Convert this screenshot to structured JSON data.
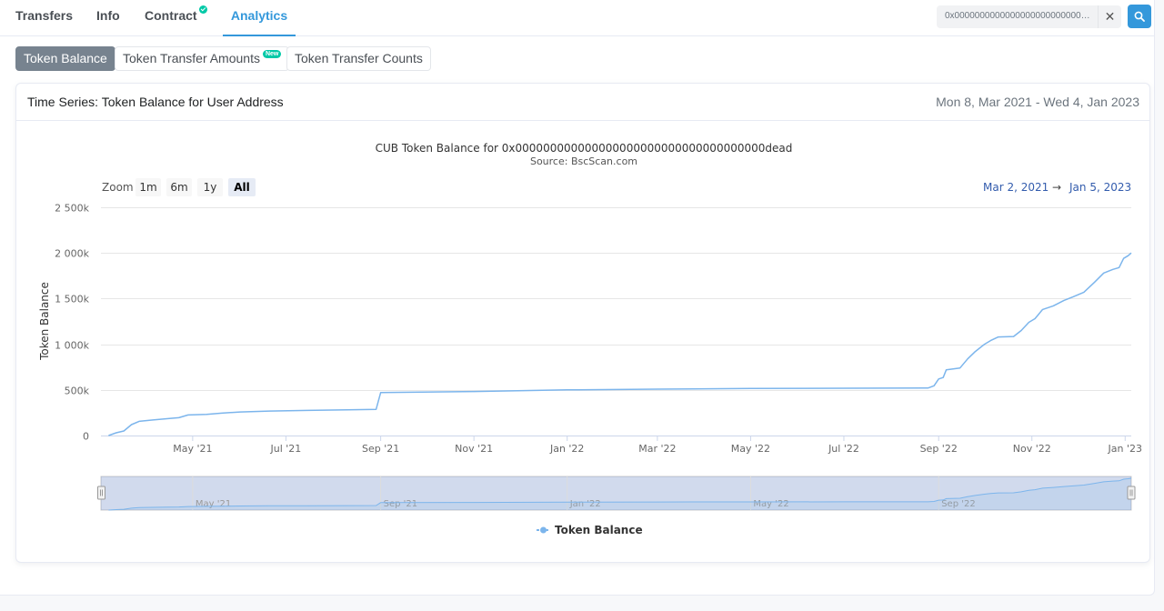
{
  "tabs": [
    {
      "label": "Transfers"
    },
    {
      "label": "Info"
    },
    {
      "label": "Contract"
    },
    {
      "label": "Analytics"
    }
  ],
  "search": {
    "value": "0x000000000000000000000000000000000000dead"
  },
  "subtabs": [
    {
      "label": "Token Balance"
    },
    {
      "label": "Token Transfer Amounts",
      "badge": "New"
    },
    {
      "label": "Token Transfer Counts"
    }
  ],
  "card": {
    "title": "Time Series: Token Balance for User Address",
    "range": "Mon 8, Mar 2021 - Wed 4, Jan 2023"
  },
  "chart": {
    "title": "CUB Token Balance for 0x000000000000000000000000000000000000dead",
    "subtitle": "Source: BscScan.com",
    "zoom_label": "Zoom",
    "zoom_buttons": [
      "1m",
      "6m",
      "1y",
      "All"
    ],
    "range_from": "Mar 2, 2021",
    "range_arrow": "→",
    "range_to": "Jan 5, 2023",
    "legend": "Token Balance"
  },
  "colors": {
    "accent": "#3498db",
    "series": "#7cb5ec",
    "badge": "#00c9a7"
  },
  "chart_data": {
    "type": "line",
    "title": "CUB Token Balance for 0x000000000000000000000000000000000000dead",
    "subtitle": "Source: BscScan.com",
    "xlabel": "",
    "ylabel": "Token Balance",
    "ylim": [
      0,
      2500000
    ],
    "y_ticks": [
      0,
      500000,
      1000000,
      1500000,
      2000000,
      2500000
    ],
    "y_tick_labels": [
      "0",
      "500k",
      "1 000k",
      "1 500k",
      "2 000k",
      "2 500k"
    ],
    "x_tick_labels": [
      "May '21",
      "Jul '21",
      "Sep '21",
      "Nov '21",
      "Jan '22",
      "Mar '22",
      "May '22",
      "Jul '22",
      "Sep '22",
      "Nov '22",
      "Jan '23"
    ],
    "x_tick_dates": [
      "2021-05-01",
      "2021-07-01",
      "2021-09-01",
      "2021-11-01",
      "2022-01-01",
      "2022-03-01",
      "2022-05-01",
      "2022-07-01",
      "2022-09-01",
      "2022-11-01",
      "2023-01-01"
    ],
    "navigator_labels": [
      "May '21",
      "Sep '21",
      "Jan '22",
      "May '22",
      "Sep '22"
    ],
    "navigator_dates": [
      "2021-05-01",
      "2021-09-01",
      "2022-01-01",
      "2022-05-01",
      "2022-09-01"
    ],
    "xlim": [
      "2021-03-02",
      "2023-01-05"
    ],
    "grid": true,
    "legend": "bottom-center",
    "series": [
      {
        "name": "Token Balance",
        "points": [
          [
            "2021-03-07",
            0
          ],
          [
            "2021-03-12",
            30000
          ],
          [
            "2021-03-17",
            50000
          ],
          [
            "2021-03-22",
            120000
          ],
          [
            "2021-03-27",
            155000
          ],
          [
            "2021-04-05",
            170000
          ],
          [
            "2021-04-15",
            185000
          ],
          [
            "2021-04-22",
            195000
          ],
          [
            "2021-04-28",
            225000
          ],
          [
            "2021-05-10",
            232000
          ],
          [
            "2021-05-20",
            245000
          ],
          [
            "2021-06-01",
            258000
          ],
          [
            "2021-06-20",
            268000
          ],
          [
            "2021-07-15",
            275000
          ],
          [
            "2021-08-10",
            281000
          ],
          [
            "2021-08-29",
            287000
          ],
          [
            "2021-09-01",
            470000
          ],
          [
            "2021-11-01",
            482000
          ],
          [
            "2022-01-01",
            500000
          ],
          [
            "2022-03-01",
            508000
          ],
          [
            "2022-05-01",
            515000
          ],
          [
            "2022-07-01",
            518000
          ],
          [
            "2022-08-25",
            520000
          ],
          [
            "2022-08-29",
            545000
          ],
          [
            "2022-09-01",
            620000
          ],
          [
            "2022-09-04",
            635000
          ],
          [
            "2022-09-06",
            720000
          ],
          [
            "2022-09-15",
            740000
          ],
          [
            "2022-09-20",
            840000
          ],
          [
            "2022-09-25",
            920000
          ],
          [
            "2022-10-01",
            1000000
          ],
          [
            "2022-10-05",
            1040000
          ],
          [
            "2022-10-10",
            1080000
          ],
          [
            "2022-10-20",
            1085000
          ],
          [
            "2022-10-25",
            1150000
          ],
          [
            "2022-10-30",
            1240000
          ],
          [
            "2022-11-03",
            1280000
          ],
          [
            "2022-11-08",
            1380000
          ],
          [
            "2022-11-15",
            1420000
          ],
          [
            "2022-11-22",
            1480000
          ],
          [
            "2022-11-28",
            1520000
          ],
          [
            "2022-12-05",
            1570000
          ],
          [
            "2022-12-12",
            1680000
          ],
          [
            "2022-12-18",
            1780000
          ],
          [
            "2022-12-24",
            1820000
          ],
          [
            "2022-12-28",
            1840000
          ],
          [
            "2022-12-31",
            1940000
          ],
          [
            "2023-01-03",
            1970000
          ],
          [
            "2023-01-05",
            2000000
          ]
        ]
      }
    ]
  }
}
